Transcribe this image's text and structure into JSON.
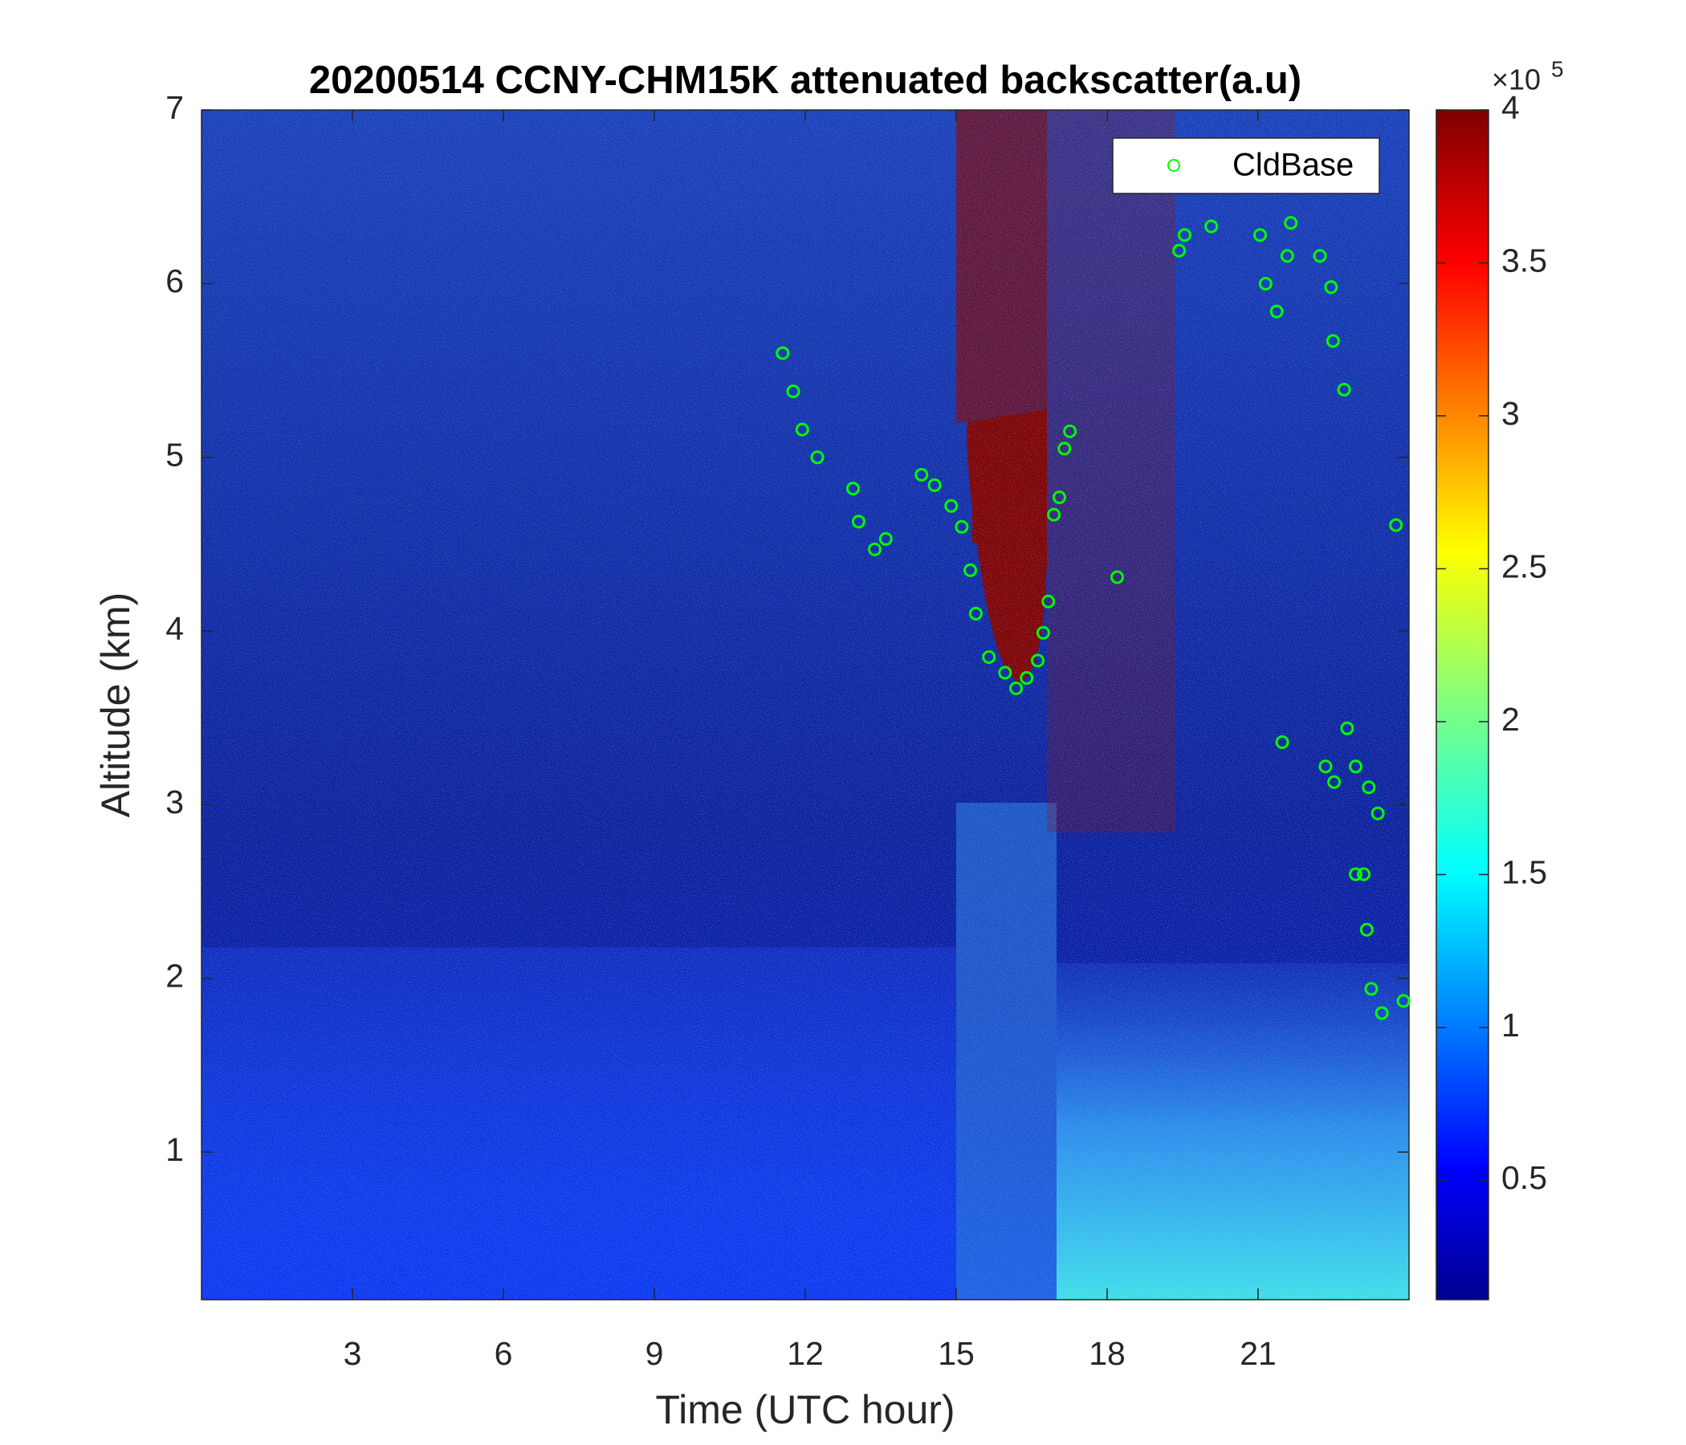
{
  "chart_data": {
    "type": "scatter",
    "title": "20200514 CCNY-CHM15K attenuated backscatter(a.u)",
    "x_label": "Time (UTC hour)",
    "y_label": "Altitude (km)",
    "xlim": [
      0,
      24
    ],
    "xticks": [
      3,
      6,
      9,
      12,
      15,
      18,
      21
    ],
    "ylim": [
      0.15,
      7
    ],
    "yticks": [
      1,
      2,
      3,
      4,
      5,
      6,
      7
    ],
    "legend": "upper right",
    "series": [
      {
        "name": "CldBase",
        "color": "#00ff00",
        "x": [
          11.55,
          11.76,
          11.94,
          12.24,
          12.95,
          13.06,
          13.38,
          13.6,
          14.31,
          14.57,
          14.9,
          15.11,
          15.28,
          15.39,
          15.65,
          15.97,
          16.19,
          16.4,
          16.62,
          16.73,
          16.83,
          16.94,
          17.05,
          17.15,
          17.26,
          18.2,
          19.43,
          19.54,
          20.07,
          21.04,
          21.15,
          21.37,
          21.58,
          21.65,
          21.48,
          22.23,
          22.45,
          22.49,
          22.71,
          22.34,
          22.51,
          22.77,
          22.94,
          23.2,
          23.38,
          23.1,
          23.16,
          22.94,
          23.25,
          23.46,
          23.74,
          23.89
        ],
        "y": [
          5.6,
          5.38,
          5.16,
          5.0,
          4.82,
          4.63,
          4.47,
          4.53,
          4.9,
          4.84,
          4.72,
          4.6,
          4.35,
          4.1,
          3.85,
          3.76,
          3.67,
          3.73,
          3.83,
          3.99,
          4.17,
          4.67,
          4.77,
          5.05,
          5.15,
          4.31,
          6.19,
          6.28,
          6.33,
          6.28,
          6.0,
          5.84,
          6.16,
          6.35,
          3.36,
          6.16,
          5.98,
          5.67,
          5.39,
          3.22,
          3.13,
          3.44,
          3.22,
          3.1,
          2.95,
          2.6,
          2.28,
          2.6,
          1.94,
          1.8,
          4.61,
          1.87
        ]
      }
    ],
    "colorbar": {
      "lim": [
        0.11,
        4
      ],
      "ticks": [
        0.5,
        1,
        1.5,
        2,
        2.5,
        3,
        3.5,
        4
      ],
      "multiplier": "×10",
      "exponent": 5
    }
  }
}
